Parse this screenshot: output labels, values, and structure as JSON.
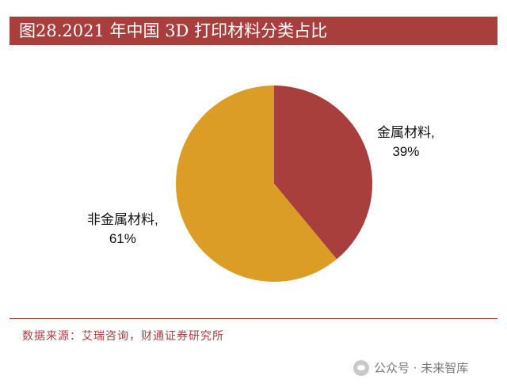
{
  "title": "图28.2021 年中国 3D 打印材料分类占比",
  "source": "数据来源：艾瑞咨询，财通证券研究所",
  "watermark": {
    "text": "公众号 · 未来智库",
    "icon": "wechat-icon"
  },
  "colors": {
    "accent": "#a93f3d",
    "metal": "#a93f3d",
    "nonmetal": "#dc9d26"
  },
  "chart_data": {
    "type": "pie",
    "title": "图28.2021 年中国 3D 打印材料分类占比",
    "slices": [
      {
        "label": "金属材料",
        "value": 39,
        "display_value": "39%",
        "color": "#a93f3d"
      },
      {
        "label": "非金属材料",
        "value": 61,
        "display_value": "61%",
        "color": "#dc9d26"
      }
    ],
    "start_angle": "12 o'clock",
    "direction": "clockwise",
    "legend": "none",
    "data_labels": "outside"
  }
}
